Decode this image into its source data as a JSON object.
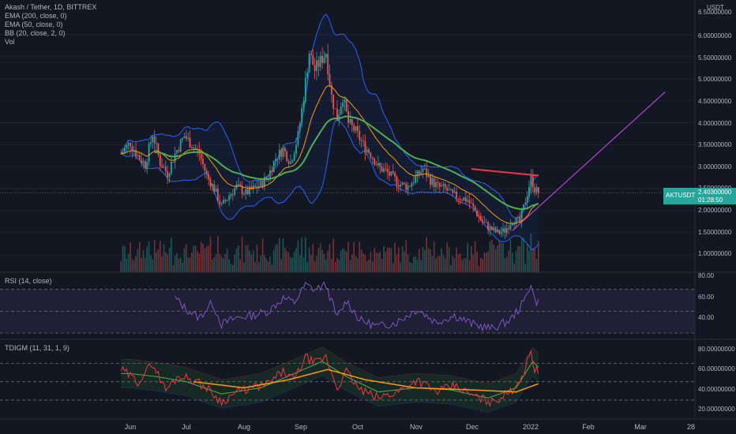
{
  "header": {
    "title": "Akash / Tether, 1D, BITTREX",
    "indicators": [
      "EMA (200, close, 0)",
      "EMA (50, close, 0)",
      "BB (20, close, 2, 0)",
      "Vol"
    ]
  },
  "price_axis": {
    "currency": "USDT",
    "ticks": [
      "6.50000000",
      "6.00000000",
      "5.50000000",
      "5.00000000",
      "4.50000000",
      "4.00000000",
      "3.50000000",
      "3.00000000",
      "2.50000000",
      "2.00000000",
      "1.50000000",
      "1.00000000"
    ]
  },
  "price_tag": {
    "symbol": "AKTUSDT",
    "value": "2.40300000",
    "countdown": "01:28:50"
  },
  "time_axis": {
    "labels": [
      "Jun",
      "Jul",
      "Aug",
      "Sep",
      "Oct",
      "Nov",
      "Dec",
      "2022",
      "Feb",
      "Mar",
      "28"
    ]
  },
  "rsi_panel": {
    "legend": "RSI (14, close)",
    "ticks": [
      "80.00",
      "60.00",
      "40.00"
    ]
  },
  "tdi_panel": {
    "legend": "TDIGM (11, 31, 1, 9)",
    "ticks": [
      "80.00000000",
      "60.00000000",
      "40.00000000",
      "20.00000000"
    ]
  },
  "colors": {
    "background": "#131722",
    "up": "#26a69a",
    "down": "#ef5350",
    "bb": "#2962ff",
    "ema50": "#ff9800",
    "ema200": "#4caf50",
    "resistance": "#f23645",
    "projection": "#b044d8",
    "rsi": "#7e57c2",
    "tdi_price": "#f23645",
    "tdi_signal": "#4caf50",
    "tdi_mid": "#ff9800"
  },
  "chart_data": [
    {
      "type": "candlestick",
      "title": "Akash / Tether, 1D, BITTREX",
      "ylim": [
        0.9,
        6.5
      ],
      "x": [
        "Jun",
        "Jul",
        "Aug",
        "Sep",
        "Oct",
        "Nov",
        "Dec",
        "2022",
        "Feb",
        "Mar",
        "28"
      ],
      "last_price": 2.403,
      "close_anchors": [
        [
          "2021-05-27",
          3.3
        ],
        [
          "2021-06-01",
          3.55
        ],
        [
          "2021-06-05",
          3.25
        ],
        [
          "2021-06-09",
          3.05
        ],
        [
          "2021-06-13",
          3.75
        ],
        [
          "2021-06-17",
          3.1
        ],
        [
          "2021-06-21",
          2.85
        ],
        [
          "2021-06-25",
          3.3
        ],
        [
          "2021-06-30",
          3.7
        ],
        [
          "2021-07-04",
          3.5
        ],
        [
          "2021-07-08",
          3.3
        ],
        [
          "2021-07-12",
          2.8
        ],
        [
          "2021-07-16",
          2.5
        ],
        [
          "2021-07-20",
          2.1
        ],
        [
          "2021-07-24",
          2.35
        ],
        [
          "2021-07-28",
          2.55
        ],
        [
          "2021-08-02",
          2.4
        ],
        [
          "2021-08-06",
          2.5
        ],
        [
          "2021-08-10",
          2.6
        ],
        [
          "2021-08-14",
          2.8
        ],
        [
          "2021-08-18",
          3.2
        ],
        [
          "2021-08-22",
          3.4
        ],
        [
          "2021-08-26",
          3.1
        ],
        [
          "2021-08-30",
          3.7
        ],
        [
          "2021-09-02",
          4.6
        ],
        [
          "2021-09-05",
          5.6
        ],
        [
          "2021-09-08",
          5.2
        ],
        [
          "2021-09-11",
          5.4
        ],
        [
          "2021-09-14",
          5.6
        ],
        [
          "2021-09-17",
          4.6
        ],
        [
          "2021-09-20",
          4.1
        ],
        [
          "2021-09-23",
          4.6
        ],
        [
          "2021-09-26",
          4.0
        ],
        [
          "2021-09-30",
          3.8
        ],
        [
          "2021-10-04",
          3.5
        ],
        [
          "2021-10-08",
          3.3
        ],
        [
          "2021-10-12",
          3.0
        ],
        [
          "2021-10-16",
          2.9
        ],
        [
          "2021-10-20",
          2.75
        ],
        [
          "2021-10-24",
          2.6
        ],
        [
          "2021-10-28",
          2.55
        ],
        [
          "2021-11-01",
          2.75
        ],
        [
          "2021-11-05",
          2.95
        ],
        [
          "2021-11-09",
          2.7
        ],
        [
          "2021-11-13",
          2.55
        ],
        [
          "2021-11-17",
          2.5
        ],
        [
          "2021-11-21",
          2.35
        ],
        [
          "2021-11-25",
          2.3
        ],
        [
          "2021-11-29",
          2.25
        ],
        [
          "2021-12-03",
          2.0
        ],
        [
          "2021-12-07",
          1.75
        ],
        [
          "2021-12-11",
          1.6
        ],
        [
          "2021-12-15",
          1.5
        ],
        [
          "2021-12-19",
          1.55
        ],
        [
          "2021-12-23",
          1.8
        ],
        [
          "2021-12-27",
          1.75
        ],
        [
          "2021-12-31",
          2.4
        ],
        [
          "2022-01-02",
          2.75
        ],
        [
          "2022-01-04",
          2.5
        ],
        [
          "2022-01-06",
          2.4
        ]
      ],
      "resistance_line": {
        "from": [
          "2021-12-01",
          2.95
        ],
        "to": [
          "2022-01-06",
          2.8
        ]
      },
      "projection_line": {
        "from": [
          "2021-12-23",
          1.55
        ],
        "to": [
          "2022-03-15",
          4.7
        ]
      }
    },
    {
      "type": "line",
      "title": "RSI (14, close)",
      "ylim": [
        25,
        85
      ],
      "guides": [
        70,
        50,
        30
      ],
      "values_anchors": [
        [
          "2021-06-25",
          62
        ],
        [
          "2021-07-01",
          52
        ],
        [
          "2021-07-08",
          44
        ],
        [
          "2021-07-15",
          58
        ],
        [
          "2021-07-20",
          38
        ],
        [
          "2021-07-28",
          44
        ],
        [
          "2021-08-05",
          46
        ],
        [
          "2021-08-14",
          50
        ],
        [
          "2021-08-22",
          62
        ],
        [
          "2021-08-28",
          58
        ],
        [
          "2021-09-03",
          74
        ],
        [
          "2021-09-08",
          70
        ],
        [
          "2021-09-14",
          74
        ],
        [
          "2021-09-20",
          44
        ],
        [
          "2021-09-25",
          60
        ],
        [
          "2021-10-02",
          42
        ],
        [
          "2021-10-12",
          36
        ],
        [
          "2021-10-22",
          40
        ],
        [
          "2021-11-02",
          52
        ],
        [
          "2021-11-12",
          40
        ],
        [
          "2021-11-22",
          46
        ],
        [
          "2021-12-02",
          38
        ],
        [
          "2021-12-12",
          34
        ],
        [
          "2021-12-22",
          42
        ],
        [
          "2021-12-29",
          58
        ],
        [
          "2022-01-02",
          76
        ],
        [
          "2022-01-04",
          60
        ],
        [
          "2022-01-06",
          58
        ]
      ]
    },
    {
      "type": "line",
      "title": "TDIGM (11, 31, 1, 9)",
      "ylim": [
        15,
        90
      ],
      "guides": [
        68,
        50,
        32
      ],
      "price_anchors": [
        [
          "2021-05-27",
          62
        ],
        [
          "2021-06-05",
          50
        ],
        [
          "2021-06-13",
          68
        ],
        [
          "2021-06-20",
          42
        ],
        [
          "2021-06-27",
          56
        ],
        [
          "2021-07-05",
          52
        ],
        [
          "2021-07-12",
          44
        ],
        [
          "2021-07-20",
          30
        ],
        [
          "2021-07-28",
          40
        ],
        [
          "2021-08-06",
          44
        ],
        [
          "2021-08-14",
          48
        ],
        [
          "2021-08-22",
          60
        ],
        [
          "2021-08-28",
          52
        ],
        [
          "2021-09-03",
          74
        ],
        [
          "2021-09-08",
          68
        ],
        [
          "2021-09-14",
          74
        ],
        [
          "2021-09-20",
          44
        ],
        [
          "2021-09-25",
          60
        ],
        [
          "2021-10-02",
          42
        ],
        [
          "2021-10-12",
          34
        ],
        [
          "2021-10-22",
          40
        ],
        [
          "2021-11-02",
          52
        ],
        [
          "2021-11-12",
          40
        ],
        [
          "2021-11-22",
          46
        ],
        [
          "2021-12-02",
          36
        ],
        [
          "2021-12-12",
          30
        ],
        [
          "2021-12-22",
          40
        ],
        [
          "2021-12-29",
          58
        ],
        [
          "2022-01-02",
          80
        ],
        [
          "2022-01-04",
          62
        ],
        [
          "2022-01-06",
          60
        ]
      ],
      "signal_anchors": [
        [
          "2021-06-01",
          58
        ],
        [
          "2021-06-15",
          55
        ],
        [
          "2021-07-01",
          50
        ],
        [
          "2021-07-20",
          38
        ],
        [
          "2021-08-10",
          44
        ],
        [
          "2021-08-28",
          58
        ],
        [
          "2021-09-12",
          70
        ],
        [
          "2021-09-25",
          55
        ],
        [
          "2021-10-12",
          40
        ],
        [
          "2021-11-01",
          44
        ],
        [
          "2021-11-20",
          42
        ],
        [
          "2021-12-10",
          34
        ],
        [
          "2021-12-25",
          44
        ],
        [
          "2022-01-03",
          70
        ],
        [
          "2022-01-06",
          64
        ]
      ],
      "mid_anchors": [
        [
          "2021-07-05",
          50
        ],
        [
          "2021-08-01",
          44
        ],
        [
          "2021-08-25",
          52
        ],
        [
          "2021-09-15",
          62
        ],
        [
          "2021-10-05",
          52
        ],
        [
          "2021-11-01",
          44
        ],
        [
          "2021-12-01",
          42
        ],
        [
          "2021-12-25",
          40
        ],
        [
          "2022-01-06",
          48
        ]
      ]
    }
  ]
}
